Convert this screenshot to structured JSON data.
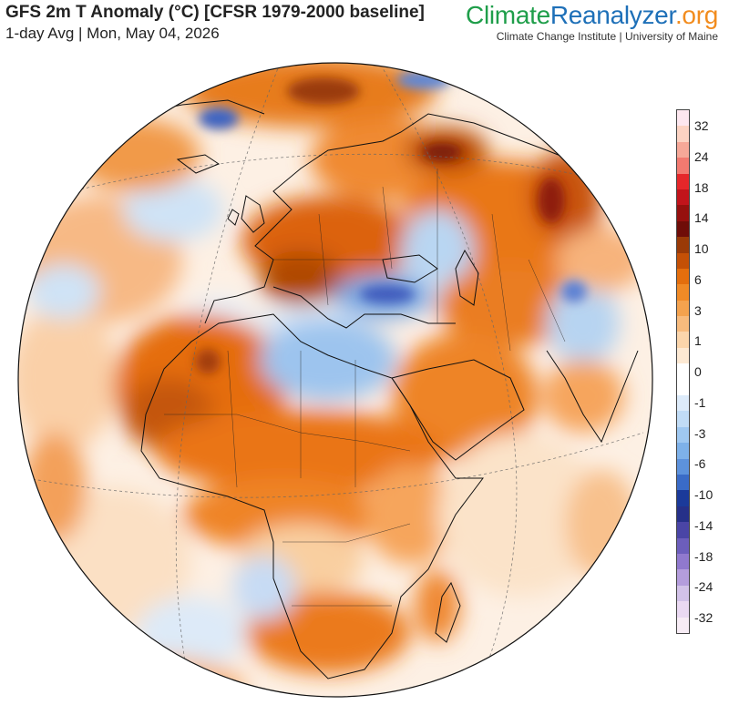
{
  "header": {
    "title": "GFS 2m T Anomaly (°C) [CFSR 1979-2000 baseline]",
    "subtitle": "1-day Avg | Mon, May 04, 2026"
  },
  "brand": {
    "part1": "Climate",
    "part2": "Reanalyzer",
    "part3": ".org",
    "color1": "#1f9e4a",
    "color2": "#1e70b8",
    "color3": "#f28c1e",
    "tagline": "Climate Change Institute | University of Maine"
  },
  "map": {
    "projection": "orthographic",
    "region": "Europe, Africa and Middle East",
    "unit": "°C"
  },
  "legend": {
    "colors": [
      "#fde7ef",
      "#fcd3c3",
      "#f6a898",
      "#f27a70",
      "#e5272a",
      "#c2141b",
      "#96100e",
      "#6f0d08",
      "#9a3a07",
      "#c45006",
      "#e46e0d",
      "#f08a26",
      "#f4a24e",
      "#f8bb7d",
      "#fbd5ab",
      "#fde9d3",
      "#ffffff",
      "#ffffff",
      "#ddebfa",
      "#c1dcf6",
      "#9fc8f1",
      "#7eb1e9",
      "#5d92dc",
      "#3a6bc7",
      "#1b3a9a",
      "#263089",
      "#4a45a6",
      "#6c5ebc",
      "#9079ce",
      "#b49ddc",
      "#d2c2e8",
      "#ead9f2",
      "#f7ecf5"
    ],
    "labels": [
      "32",
      "24",
      "18",
      "14",
      "10",
      "6",
      "3",
      "1",
      "0",
      "-1",
      "-3",
      "-6",
      "-10",
      "-14",
      "-18",
      "-24",
      "-32"
    ]
  }
}
